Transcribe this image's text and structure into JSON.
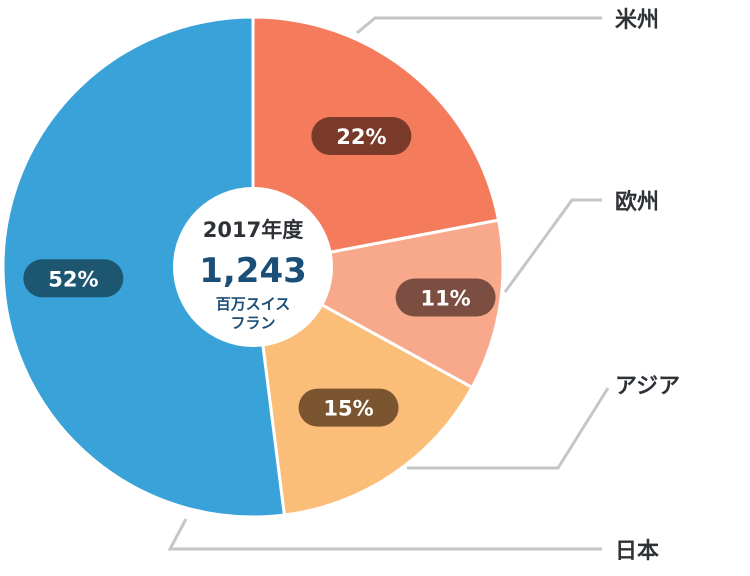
{
  "chart_data": {
    "type": "pie",
    "categories": [
      "米州",
      "欧州",
      "アジア",
      "日本"
    ],
    "values": [
      22,
      11,
      15,
      52
    ],
    "value_labels": [
      "22%",
      "11%",
      "15%",
      "52%"
    ],
    "colors": [
      "#f47b5c",
      "#f9a98b",
      "#fbbe79",
      "#38a2d9"
    ],
    "label_colors": [
      "#7a3a2a",
      "#7c4e41",
      "#7b5530",
      "#1d5671"
    ],
    "center": {
      "year": "2017年度",
      "value": "1,243",
      "unit_line1": "百万スイス",
      "unit_line2": "フラン"
    }
  }
}
